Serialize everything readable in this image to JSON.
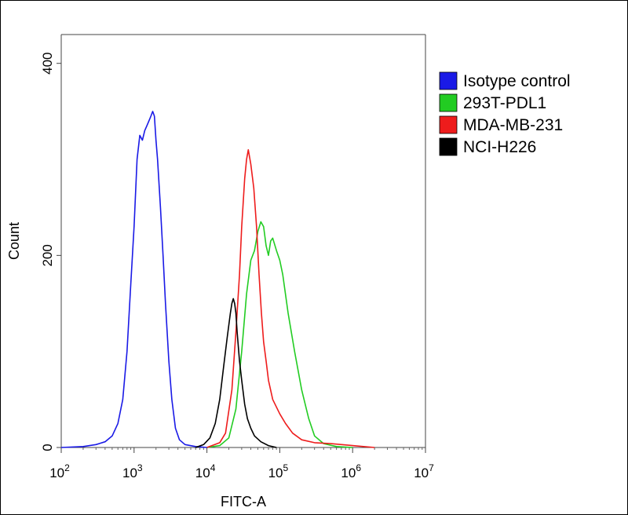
{
  "chart_data": {
    "type": "line",
    "xlabel": "FITC-A",
    "ylabel": "Count",
    "x_scale": "log",
    "xlim": [
      100,
      10000000
    ],
    "ylim": [
      0,
      430
    ],
    "x_ticks": [
      {
        "value": 100,
        "base": "10",
        "exp": "2"
      },
      {
        "value": 1000,
        "base": "10",
        "exp": "3"
      },
      {
        "value": 10000,
        "base": "10",
        "exp": "4"
      },
      {
        "value": 100000,
        "base": "10",
        "exp": "5"
      },
      {
        "value": 1000000,
        "base": "10",
        "exp": "6"
      },
      {
        "value": 10000000,
        "base": "10",
        "exp": "7"
      }
    ],
    "y_ticks": [
      0,
      200,
      400
    ],
    "grid": false,
    "legend_position": "right",
    "series": [
      {
        "name": "Isotype control",
        "color": "#1a1ae6",
        "points": [
          [
            100,
            0
          ],
          [
            200,
            1
          ],
          [
            300,
            3
          ],
          [
            400,
            6
          ],
          [
            500,
            12
          ],
          [
            600,
            25
          ],
          [
            700,
            50
          ],
          [
            800,
            100
          ],
          [
            900,
            170
          ],
          [
            1000,
            230
          ],
          [
            1100,
            300
          ],
          [
            1200,
            325
          ],
          [
            1300,
            320
          ],
          [
            1400,
            330
          ],
          [
            1500,
            335
          ],
          [
            1600,
            340
          ],
          [
            1700,
            345
          ],
          [
            1800,
            350
          ],
          [
            1900,
            345
          ],
          [
            2000,
            320
          ],
          [
            2100,
            300
          ],
          [
            2300,
            250
          ],
          [
            2500,
            200
          ],
          [
            2700,
            150
          ],
          [
            3000,
            90
          ],
          [
            3300,
            50
          ],
          [
            3700,
            20
          ],
          [
            4200,
            8
          ],
          [
            5000,
            3
          ],
          [
            7000,
            1
          ],
          [
            10000,
            0
          ]
        ]
      },
      {
        "name": "293T-PDL1",
        "color": "#22cc22",
        "points": [
          [
            10000,
            0
          ],
          [
            15000,
            2
          ],
          [
            20000,
            10
          ],
          [
            25000,
            40
          ],
          [
            30000,
            100
          ],
          [
            35000,
            160
          ],
          [
            40000,
            195
          ],
          [
            45000,
            205
          ],
          [
            50000,
            225
          ],
          [
            55000,
            235
          ],
          [
            60000,
            230
          ],
          [
            65000,
            210
          ],
          [
            70000,
            200
          ],
          [
            75000,
            215
          ],
          [
            80000,
            218
          ],
          [
            90000,
            205
          ],
          [
            100000,
            195
          ],
          [
            110000,
            180
          ],
          [
            130000,
            140
          ],
          [
            160000,
            100
          ],
          [
            200000,
            60
          ],
          [
            250000,
            30
          ],
          [
            300000,
            12
          ],
          [
            400000,
            4
          ],
          [
            600000,
            1
          ],
          [
            1000000,
            0
          ]
        ]
      },
      {
        "name": "MDA-MB-231",
        "color": "#ee1c1c",
        "points": [
          [
            10000,
            0
          ],
          [
            15000,
            5
          ],
          [
            18000,
            15
          ],
          [
            22000,
            60
          ],
          [
            25000,
            120
          ],
          [
            28000,
            180
          ],
          [
            30000,
            230
          ],
          [
            33000,
            280
          ],
          [
            35000,
            300
          ],
          [
            37000,
            310
          ],
          [
            40000,
            295
          ],
          [
            44000,
            270
          ],
          [
            48000,
            230
          ],
          [
            52000,
            180
          ],
          [
            56000,
            140
          ],
          [
            60000,
            110
          ],
          [
            65000,
            90
          ],
          [
            70000,
            70
          ],
          [
            80000,
            50
          ],
          [
            100000,
            35
          ],
          [
            120000,
            25
          ],
          [
            150000,
            15
          ],
          [
            200000,
            8
          ],
          [
            300000,
            5
          ],
          [
            500000,
            4
          ],
          [
            1000000,
            2
          ],
          [
            2000000,
            0
          ]
        ]
      },
      {
        "name": "NCI-H226",
        "color": "#000000",
        "points": [
          [
            7000,
            0
          ],
          [
            9000,
            3
          ],
          [
            11000,
            10
          ],
          [
            13000,
            25
          ],
          [
            15000,
            50
          ],
          [
            17000,
            85
          ],
          [
            19000,
            115
          ],
          [
            21000,
            140
          ],
          [
            22000,
            150
          ],
          [
            23000,
            155
          ],
          [
            24000,
            150
          ],
          [
            25000,
            140
          ],
          [
            26000,
            120
          ],
          [
            28000,
            90
          ],
          [
            30000,
            70
          ],
          [
            33000,
            45
          ],
          [
            36000,
            30
          ],
          [
            40000,
            20
          ],
          [
            45000,
            12
          ],
          [
            55000,
            6
          ],
          [
            70000,
            2
          ],
          [
            90000,
            0
          ]
        ]
      }
    ]
  }
}
